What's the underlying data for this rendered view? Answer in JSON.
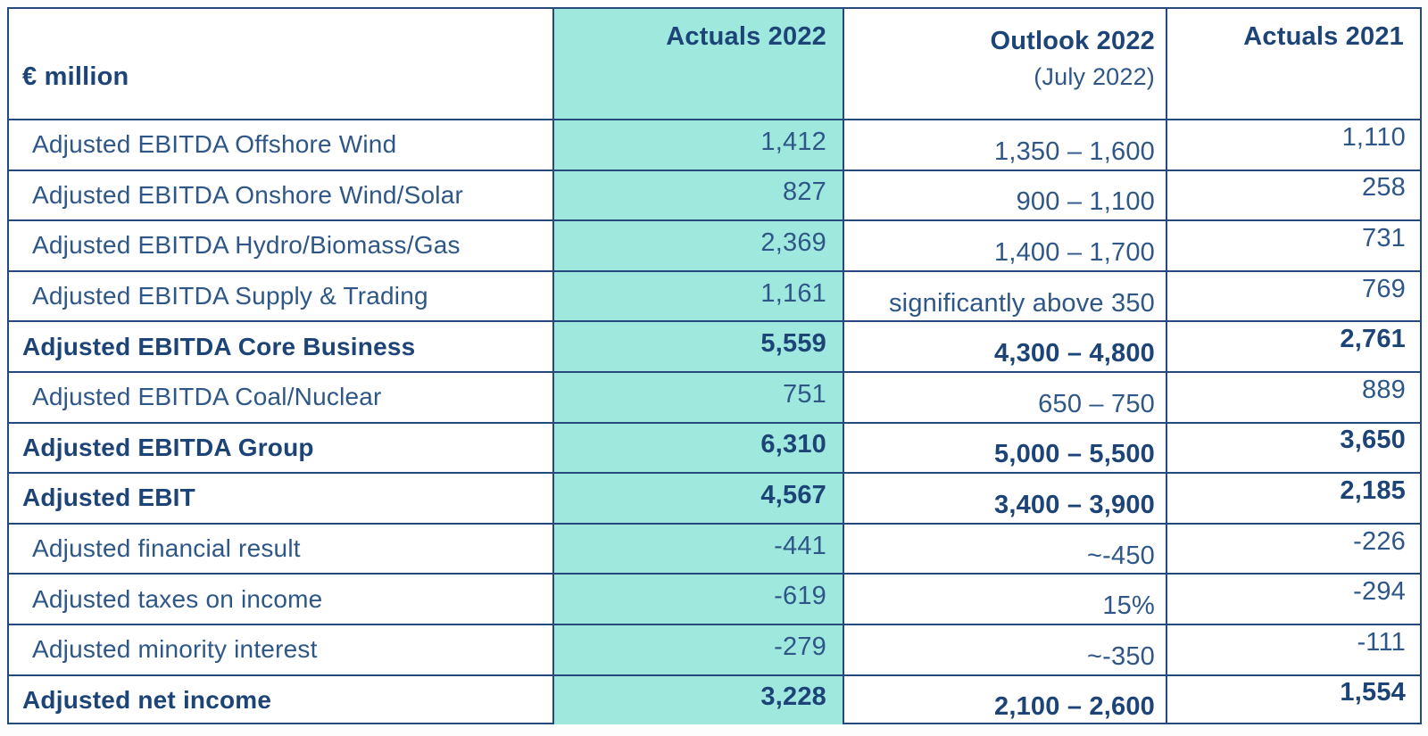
{
  "table": {
    "unit_label": "€ million",
    "columns": [
      {
        "label": "Actuals 2022",
        "sublabel": "",
        "highlighted": true
      },
      {
        "label": "Outlook 2022",
        "sublabel": "(July 2022)",
        "highlighted": false
      },
      {
        "label": "Actuals 2021",
        "sublabel": "",
        "highlighted": false
      }
    ],
    "rows": [
      {
        "label": "Adjusted EBITDA Offshore Wind",
        "actuals_2022": "1,412",
        "outlook_2022": "1,350 – 1,600",
        "actuals_2021": "1,110",
        "bold": false
      },
      {
        "label": "Adjusted EBITDA Onshore Wind/Solar",
        "actuals_2022": "827",
        "outlook_2022": "900 – 1,100",
        "actuals_2021": "258",
        "bold": false
      },
      {
        "label": "Adjusted EBITDA Hydro/Biomass/Gas",
        "actuals_2022": "2,369",
        "outlook_2022": "1,400 – 1,700",
        "actuals_2021": "731",
        "bold": false
      },
      {
        "label": "Adjusted EBITDA Supply & Trading",
        "actuals_2022": "1,161",
        "outlook_2022": "significantly above 350",
        "actuals_2021": "769",
        "bold": false
      },
      {
        "label": "Adjusted EBITDA Core Business",
        "actuals_2022": "5,559",
        "outlook_2022": "4,300 – 4,800",
        "actuals_2021": "2,761",
        "bold": true
      },
      {
        "label": "Adjusted EBITDA Coal/Nuclear",
        "actuals_2022": "751",
        "outlook_2022": "650 – 750",
        "actuals_2021": "889",
        "bold": false
      },
      {
        "label": "Adjusted EBITDA Group",
        "actuals_2022": "6,310",
        "outlook_2022": "5,000 – 5,500",
        "actuals_2021": "3,650",
        "bold": true
      },
      {
        "label": "Adjusted EBIT",
        "actuals_2022": "4,567",
        "outlook_2022": "3,400 – 3,900",
        "actuals_2021": "2,185",
        "bold": true
      },
      {
        "label": "Adjusted financial result",
        "actuals_2022": "-441",
        "outlook_2022": "~-450",
        "actuals_2021": "-226",
        "bold": false
      },
      {
        "label": "Adjusted taxes on income",
        "actuals_2022": "-619",
        "outlook_2022": "15%",
        "actuals_2021": "-294",
        "bold": false
      },
      {
        "label": "Adjusted minority interest",
        "actuals_2022": "-279",
        "outlook_2022": "~-350",
        "actuals_2021": "-111",
        "bold": false
      },
      {
        "label": "Adjusted net income",
        "actuals_2022": "3,228",
        "outlook_2022": "2,100 – 2,600",
        "actuals_2021": "1,554",
        "bold": true
      }
    ]
  },
  "colors": {
    "highlight_teal": "#9FE8DE",
    "navy_bold_text": "#1D4477",
    "regular_text": "#2E5788",
    "grid_border": "#25497C",
    "background": "#FFFFFF"
  }
}
